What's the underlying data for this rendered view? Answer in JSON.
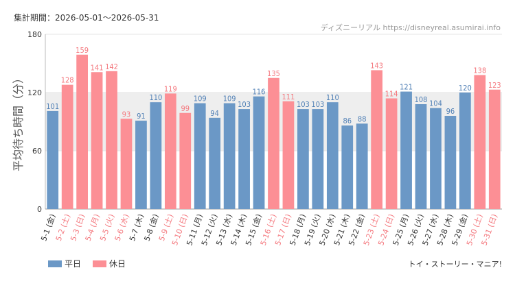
{
  "header": {
    "period": "集計期間：2026-05-01～2026-05-31",
    "source": "ディズニーリアル https://disneyreal.asumirai.info"
  },
  "footer": {
    "attraction": "トイ・ストーリー・マニア!"
  },
  "colors": {
    "weekday": "#6b98c6",
    "holiday": "#fc8f95",
    "weekday_text": "#4f7fb5",
    "holiday_text": "#f4787e",
    "band": "#eeeeee"
  },
  "chart_data": {
    "type": "bar",
    "title": "",
    "xlabel": "",
    "ylabel": "平均待ち時間（分）",
    "ylim": [
      0,
      180
    ],
    "yticks": [
      "0",
      "60",
      "120",
      "180"
    ],
    "grid": true,
    "highlight_band": [
      60,
      120
    ],
    "legend_position": "bottom-left",
    "categories": [
      "5-1 (金)",
      "5-2 (土)",
      "5-3 (日)",
      "5-4 (月)",
      "5-5 (火)",
      "5-6 (水)",
      "5-7 (木)",
      "5-8 (金)",
      "5-9 (土)",
      "5-10 (日)",
      "5-11 (月)",
      "5-12 (火)",
      "5-13 (水)",
      "5-14 (木)",
      "5-15 (金)",
      "5-16 (土)",
      "5-17 (日)",
      "5-18 (月)",
      "5-19 (火)",
      "5-20 (水)",
      "5-21 (木)",
      "5-22 (金)",
      "5-23 (土)",
      "5-24 (日)",
      "5-25 (月)",
      "5-26 (火)",
      "5-27 (水)",
      "5-28 (木)",
      "5-29 (金)",
      "5-30 (土)",
      "5-31 (日)"
    ],
    "values": [
      101,
      128,
      159,
      141,
      142,
      93,
      91,
      110,
      119,
      99,
      109,
      94,
      109,
      103,
      116,
      135,
      111,
      103,
      103,
      110,
      86,
      88,
      143,
      114,
      121,
      108,
      104,
      96,
      120,
      138,
      123
    ],
    "day_type": [
      "平日",
      "休日",
      "休日",
      "休日",
      "休日",
      "休日",
      "平日",
      "平日",
      "休日",
      "休日",
      "平日",
      "平日",
      "平日",
      "平日",
      "平日",
      "休日",
      "休日",
      "平日",
      "平日",
      "平日",
      "平日",
      "平日",
      "休日",
      "休日",
      "平日",
      "平日",
      "平日",
      "平日",
      "平日",
      "休日",
      "休日"
    ],
    "legend": [
      {
        "name": "平日",
        "color": "#6b98c6"
      },
      {
        "name": "休日",
        "color": "#fc8f95"
      }
    ]
  }
}
